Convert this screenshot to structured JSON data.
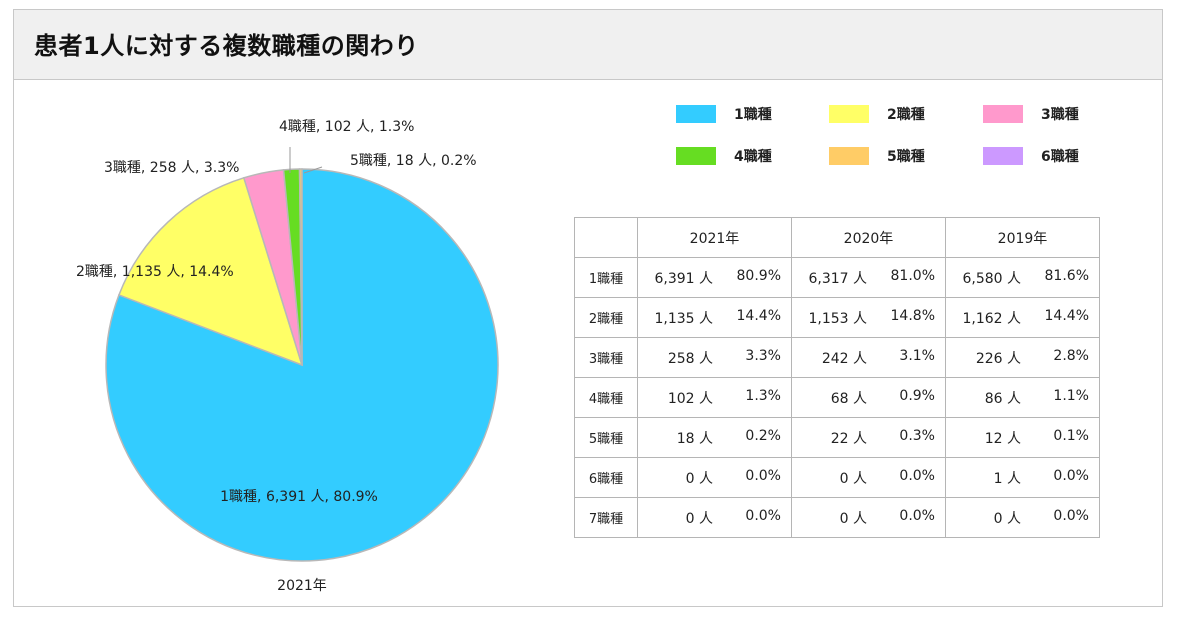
{
  "title": "患者1人に対する複数職種の関わり",
  "chart_data": {
    "type": "pie",
    "caption": "2021年",
    "slices": [
      {
        "label": "1職種, 6,391 人, 80.9%",
        "value": 80.9,
        "color": "#33ccff"
      },
      {
        "label": "2職種, 1,135 人, 14.4%",
        "value": 14.4,
        "color": "#ffff66"
      },
      {
        "label": "3職種, 258 人, 3.3%",
        "value": 3.3,
        "color": "#ff99cc"
      },
      {
        "label": "4職種, 102 人, 1.3%",
        "value": 1.3,
        "color": "#66dd22"
      },
      {
        "label": "5職種, 18 人, 0.2%",
        "value": 0.2,
        "color": "#ffcc66"
      }
    ]
  },
  "legend": [
    {
      "label": "1職種",
      "color": "#33ccff"
    },
    {
      "label": "2職種",
      "color": "#ffff66"
    },
    {
      "label": "3職種",
      "color": "#ff99cc"
    },
    {
      "label": "4職種",
      "color": "#66dd22"
    },
    {
      "label": "5職種",
      "color": "#ffcc66"
    },
    {
      "label": "6職種",
      "color": "#cc99ff"
    }
  ],
  "table": {
    "headers": [
      "2021年",
      "2020年",
      "2019年"
    ],
    "rows": [
      {
        "label": "1職種",
        "cells": [
          [
            "6,391 人",
            "80.9%"
          ],
          [
            "6,317 人",
            "81.0%"
          ],
          [
            "6,580 人",
            "81.6%"
          ]
        ]
      },
      {
        "label": "2職種",
        "cells": [
          [
            "1,135 人",
            "14.4%"
          ],
          [
            "1,153 人",
            "14.8%"
          ],
          [
            "1,162 人",
            "14.4%"
          ]
        ]
      },
      {
        "label": "3職種",
        "cells": [
          [
            "258 人",
            "3.3%"
          ],
          [
            "242 人",
            "3.1%"
          ],
          [
            "226 人",
            "2.8%"
          ]
        ]
      },
      {
        "label": "4職種",
        "cells": [
          [
            "102 人",
            "1.3%"
          ],
          [
            "68 人",
            "0.9%"
          ],
          [
            "86 人",
            "1.1%"
          ]
        ]
      },
      {
        "label": "5職種",
        "cells": [
          [
            "18 人",
            "0.2%"
          ],
          [
            "22 人",
            "0.3%"
          ],
          [
            "12 人",
            "0.1%"
          ]
        ]
      },
      {
        "label": "6職種",
        "cells": [
          [
            "0 人",
            "0.0%"
          ],
          [
            "0 人",
            "0.0%"
          ],
          [
            "1 人",
            "0.0%"
          ]
        ]
      },
      {
        "label": "7職種",
        "cells": [
          [
            "0 人",
            "0.0%"
          ],
          [
            "0 人",
            "0.0%"
          ],
          [
            "0 人",
            "0.0%"
          ]
        ]
      }
    ]
  }
}
